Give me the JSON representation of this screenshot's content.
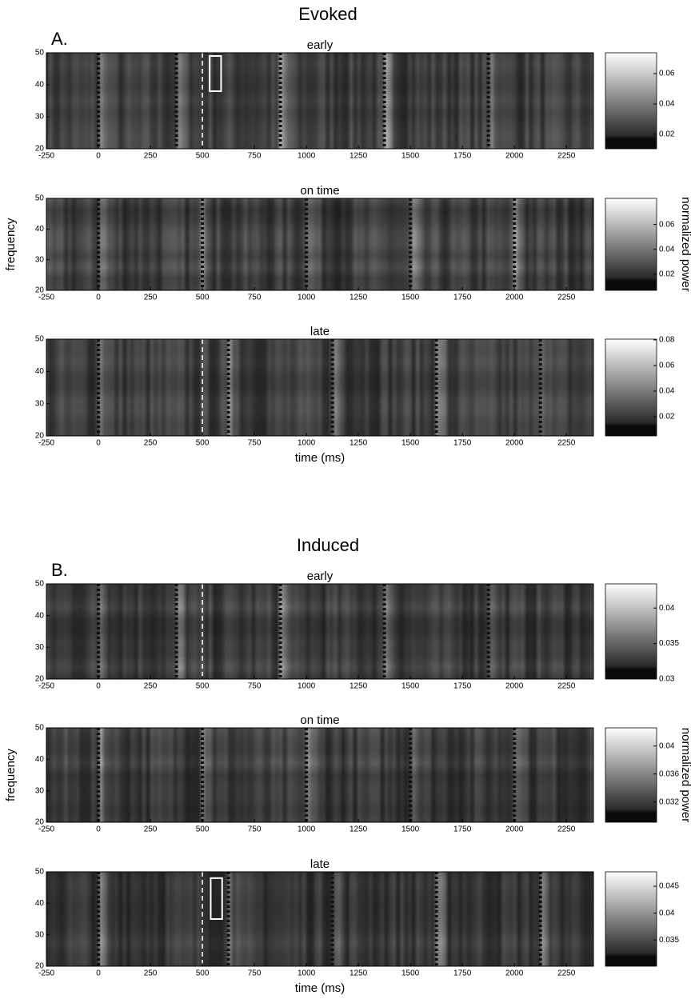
{
  "chart_data": [
    {
      "type": "heatmap",
      "suptitle": "Evoked",
      "panel_label": "A.",
      "title": "early",
      "xlim": [
        -250,
        2380
      ],
      "ylim": [
        20,
        50
      ],
      "xticks": [
        -250,
        0,
        250,
        500,
        750,
        1000,
        1250,
        1500,
        1750,
        2000,
        2250
      ],
      "yticks": [
        20,
        30,
        40,
        50
      ],
      "clim": [
        0.0105,
        0.0737
      ],
      "cticks": [
        0.02,
        0.04,
        0.06
      ],
      "markers": [
        0,
        375,
        875,
        1375,
        1875
      ],
      "reference_line": 500,
      "box": {
        "x": [
          535,
          590
        ],
        "y": [
          38,
          49
        ]
      }
    },
    {
      "type": "heatmap",
      "title": "on time",
      "ylabel": "frequency",
      "colorbar_label": "normalized power",
      "xlim": [
        -250,
        2380
      ],
      "ylim": [
        20,
        50
      ],
      "xticks": [
        -250,
        0,
        250,
        500,
        750,
        1000,
        1250,
        1500,
        1750,
        2000,
        2250
      ],
      "yticks": [
        20,
        30,
        40,
        50
      ],
      "clim": [
        0.007,
        0.081
      ],
      "cticks": [
        0.02,
        0.04,
        0.06
      ],
      "markers": [
        0,
        500,
        1000,
        1500,
        2000
      ]
    },
    {
      "type": "heatmap",
      "title": "late",
      "xlabel": "time (ms)",
      "xlim": [
        -250,
        2380
      ],
      "ylim": [
        20,
        50
      ],
      "xticks": [
        -250,
        0,
        250,
        500,
        750,
        1000,
        1250,
        1500,
        1750,
        2000,
        2250
      ],
      "yticks": [
        20,
        30,
        40,
        50
      ],
      "clim": [
        0.005,
        0.0806
      ],
      "cticks": [
        0.02,
        0.04,
        0.06,
        0.08
      ],
      "markers": [
        0,
        625,
        1125,
        1625,
        2125
      ],
      "reference_line": 500
    },
    {
      "type": "heatmap",
      "suptitle": "Induced",
      "panel_label": "B.",
      "title": "early",
      "xlim": [
        -250,
        2380
      ],
      "ylim": [
        20,
        50
      ],
      "xticks": [
        -250,
        0,
        250,
        500,
        750,
        1000,
        1250,
        1500,
        1750,
        2000,
        2250
      ],
      "yticks": [
        20,
        30,
        40,
        50
      ],
      "clim": [
        0.03,
        0.0434
      ],
      "cticks": [
        0.03,
        0.035,
        0.04
      ],
      "markers": [
        0,
        375,
        875,
        1375,
        1875
      ],
      "reference_line": 500
    },
    {
      "type": "heatmap",
      "title": "on time",
      "ylabel": "frequency",
      "colorbar_label": "normalized power",
      "xlim": [
        -250,
        2380
      ],
      "ylim": [
        20,
        50
      ],
      "xticks": [
        -250,
        0,
        250,
        500,
        750,
        1000,
        1250,
        1500,
        1750,
        2000,
        2250
      ],
      "yticks": [
        20,
        30,
        40,
        50
      ],
      "clim": [
        0.0291,
        0.0426
      ],
      "cticks": [
        0.032,
        0.036,
        0.04
      ],
      "markers": [
        0,
        500,
        1000,
        1500,
        2000
      ]
    },
    {
      "type": "heatmap",
      "title": "late",
      "xlabel": "time (ms)",
      "xlim": [
        -250,
        2380
      ],
      "ylim": [
        20,
        50
      ],
      "xticks": [
        -250,
        0,
        250,
        500,
        750,
        1000,
        1250,
        1500,
        1750,
        2000,
        2250
      ],
      "yticks": [
        20,
        30,
        40,
        50
      ],
      "clim": [
        0.0301,
        0.0477
      ],
      "cticks": [
        0.035,
        0.04,
        0.045
      ],
      "markers": [
        0,
        625,
        1125,
        1625,
        2125
      ],
      "reference_line": 500,
      "box": {
        "x": [
          540,
          595
        ],
        "y": [
          35,
          48
        ]
      }
    }
  ]
}
